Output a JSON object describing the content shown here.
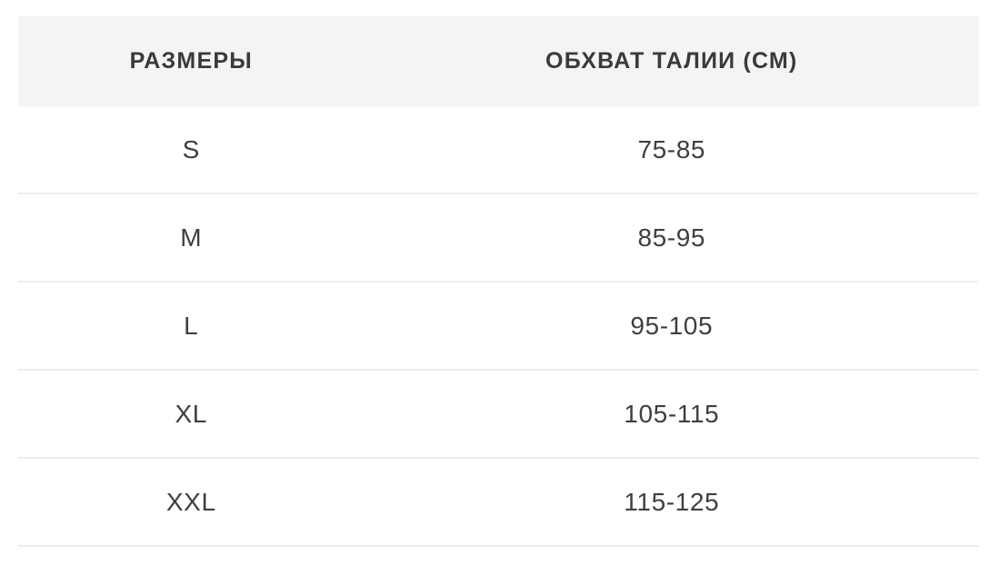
{
  "table": {
    "columns": [
      {
        "label": "РАЗМЕРЫ"
      },
      {
        "label": "ОБХВАТ ТАЛИИ (СМ)"
      }
    ],
    "rows": [
      {
        "size": "S",
        "waist": "75-85"
      },
      {
        "size": "M",
        "waist": "85-95"
      },
      {
        "size": "L",
        "waist": "95-105"
      },
      {
        "size": "XL",
        "waist": "105-115"
      },
      {
        "size": "XXL",
        "waist": "115-125"
      }
    ],
    "colors": {
      "header_bg": "#f4f4f4",
      "header_text": "#3a3a3a",
      "row_text": "#3f3f3f",
      "divider": "#ededed",
      "page_bg": "#ffffff"
    }
  }
}
